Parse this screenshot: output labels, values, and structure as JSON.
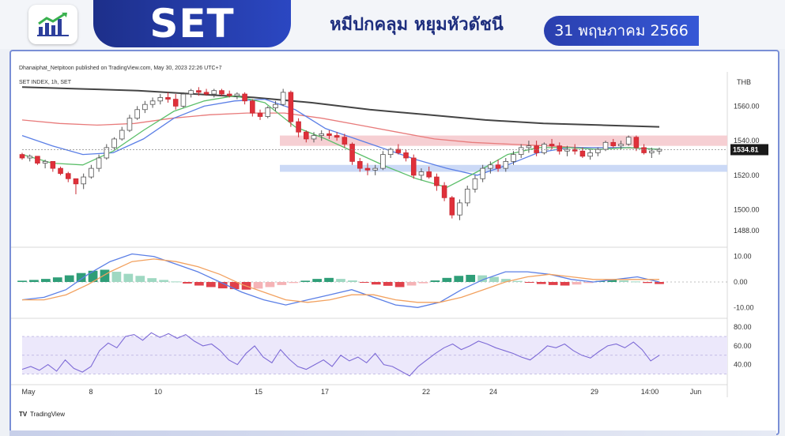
{
  "header": {
    "ticker": "SET",
    "subtitle": "หมีปกคลุม หยุมหัวดัชนี",
    "date": "31 พฤษภาคม 2566",
    "logo_icon": "chart-growth-icon"
  },
  "chart_meta": {
    "published": "Dhanaiphat_Netpitoon published on TradingView.com, May 30, 2023 22:26 UTC+7",
    "symbol": "SET INDEX, 1h, SET",
    "currency": "THB",
    "last_price_label": "1534.81",
    "brand": "TradingView"
  },
  "chart_data": [
    {
      "type": "candlestick",
      "symbol": "SET INDEX",
      "interval": "1h",
      "price_axis_ticks": [
        "1560.00",
        "1540.00",
        "1520.00",
        "1500.00",
        "1488.00"
      ],
      "ylim": [
        1482,
        1578
      ],
      "last_price": 1534.81,
      "x_ticks": [
        "May",
        "8",
        "10",
        "15",
        "17",
        "22",
        "24",
        "29",
        "14:00",
        "Jun"
      ],
      "candles": [
        [
          1532,
          1533,
          1529,
          1530
        ],
        [
          1530,
          1532,
          1528,
          1531
        ],
        [
          1531,
          1531,
          1526,
          1527
        ],
        [
          1527,
          1529,
          1524,
          1528
        ],
        [
          1528,
          1528,
          1522,
          1524
        ],
        [
          1524,
          1525,
          1520,
          1521
        ],
        [
          1521,
          1522,
          1516,
          1518
        ],
        [
          1518,
          1518,
          1509,
          1515
        ],
        [
          1515,
          1521,
          1512,
          1519
        ],
        [
          1519,
          1526,
          1518,
          1524
        ],
        [
          1524,
          1532,
          1522,
          1530
        ],
        [
          1530,
          1538,
          1529,
          1536
        ],
        [
          1536,
          1542,
          1535,
          1541
        ],
        [
          1541,
          1548,
          1540,
          1546
        ],
        [
          1546,
          1555,
          1545,
          1553
        ],
        [
          1553,
          1560,
          1552,
          1558
        ],
        [
          1558,
          1563,
          1556,
          1561
        ],
        [
          1561,
          1565,
          1559,
          1563
        ],
        [
          1563,
          1567,
          1561,
          1565
        ],
        [
          1565,
          1568,
          1562,
          1564
        ],
        [
          1564,
          1567,
          1558,
          1560
        ],
        [
          1560,
          1568,
          1559,
          1567
        ],
        [
          1567,
          1570,
          1565,
          1569
        ],
        [
          1569,
          1571,
          1566,
          1568
        ],
        [
          1568,
          1570,
          1566,
          1567
        ],
        [
          1567,
          1570,
          1565,
          1569
        ],
        [
          1569,
          1570,
          1566,
          1567
        ],
        [
          1567,
          1569,
          1565,
          1566
        ],
        [
          1566,
          1568,
          1564,
          1567
        ],
        [
          1567,
          1568,
          1561,
          1563
        ],
        [
          1563,
          1564,
          1554,
          1556
        ],
        [
          1556,
          1558,
          1552,
          1554
        ],
        [
          1554,
          1560,
          1553,
          1559
        ],
        [
          1559,
          1563,
          1557,
          1561
        ],
        [
          1561,
          1570,
          1560,
          1568
        ],
        [
          1568,
          1569,
          1548,
          1551
        ],
        [
          1551,
          1553,
          1542,
          1545
        ],
        [
          1545,
          1546,
          1539,
          1541
        ],
        [
          1541,
          1545,
          1539,
          1543
        ],
        [
          1543,
          1546,
          1540,
          1544
        ],
        [
          1544,
          1546,
          1541,
          1543
        ],
        [
          1543,
          1545,
          1540,
          1542
        ],
        [
          1542,
          1544,
          1536,
          1538
        ],
        [
          1538,
          1539,
          1526,
          1528
        ],
        [
          1528,
          1530,
          1522,
          1524
        ],
        [
          1524,
          1527,
          1520,
          1523
        ],
        [
          1523,
          1526,
          1520,
          1524
        ],
        [
          1524,
          1534,
          1523,
          1532
        ],
        [
          1532,
          1536,
          1530,
          1535
        ],
        [
          1535,
          1538,
          1532,
          1533
        ],
        [
          1533,
          1535,
          1528,
          1530
        ],
        [
          1530,
          1532,
          1518,
          1520
        ],
        [
          1520,
          1524,
          1517,
          1522
        ],
        [
          1522,
          1525,
          1518,
          1519
        ],
        [
          1519,
          1521,
          1511,
          1514
        ],
        [
          1514,
          1516,
          1505,
          1507
        ],
        [
          1507,
          1508,
          1495,
          1497
        ],
        [
          1497,
          1506,
          1494,
          1504
        ],
        [
          1504,
          1514,
          1502,
          1512
        ],
        [
          1512,
          1520,
          1510,
          1518
        ],
        [
          1518,
          1526,
          1516,
          1524
        ],
        [
          1524,
          1528,
          1521,
          1526
        ],
        [
          1526,
          1529,
          1522,
          1524
        ],
        [
          1524,
          1530,
          1522,
          1528
        ],
        [
          1528,
          1534,
          1526,
          1532
        ],
        [
          1532,
          1538,
          1530,
          1536
        ],
        [
          1536,
          1540,
          1533,
          1537
        ],
        [
          1537,
          1540,
          1531,
          1533
        ],
        [
          1533,
          1539,
          1532,
          1538
        ],
        [
          1538,
          1541,
          1535,
          1537
        ],
        [
          1537,
          1539,
          1532,
          1534
        ],
        [
          1534,
          1537,
          1531,
          1535
        ],
        [
          1535,
          1538,
          1532,
          1534
        ],
        [
          1534,
          1536,
          1530,
          1531
        ],
        [
          1531,
          1535,
          1529,
          1533
        ],
        [
          1533,
          1536,
          1531,
          1535
        ],
        [
          1535,
          1540,
          1534,
          1539
        ],
        [
          1539,
          1541,
          1536,
          1537
        ],
        [
          1537,
          1540,
          1535,
          1538
        ],
        [
          1538,
          1543,
          1537,
          1542
        ],
        [
          1542,
          1543,
          1534,
          1536
        ],
        [
          1536,
          1538,
          1532,
          1533
        ],
        [
          1533,
          1536,
          1530,
          1534
        ],
        [
          1534,
          1536,
          1532,
          1535
        ]
      ],
      "series": [
        {
          "name": "EMA-long",
          "color": "#444444",
          "values": [
            1571,
            1570,
            1569,
            1567,
            1565,
            1562,
            1558,
            1555,
            1552,
            1550,
            1549,
            1548
          ]
        },
        {
          "name": "EMA-mid",
          "color": "#e87b7b",
          "values": [
            1552,
            1550,
            1549,
            1550,
            1553,
            1555,
            1556,
            1556,
            1553,
            1549,
            1545,
            1541,
            1539,
            1538,
            1537,
            1536,
            1536,
            1535
          ]
        },
        {
          "name": "EMA-fast-blue",
          "color": "#5b7fe6",
          "values": [
            1543,
            1537,
            1532,
            1533,
            1541,
            1553,
            1560,
            1563,
            1564,
            1558,
            1547,
            1541,
            1535,
            1529,
            1524,
            1520,
            1526,
            1533,
            1536,
            1536,
            1536,
            1535
          ]
        },
        {
          "name": "EMA-fast-green",
          "color": "#5cbf6a",
          "values": [
            1532,
            1527,
            1526,
            1534,
            1546,
            1557,
            1563,
            1566,
            1562,
            1548,
            1541,
            1533,
            1525,
            1518,
            1513,
            1522,
            1532,
            1536,
            1536,
            1535,
            1536,
            1535
          ]
        }
      ],
      "zones": [
        {
          "label": "resistance",
          "from": 1537,
          "to": 1543,
          "color": "#f6cfd3"
        },
        {
          "label": "support",
          "from": 1522,
          "to": 1526,
          "color": "#cbd9f6"
        }
      ]
    },
    {
      "type": "macd",
      "axis_ticks": [
        "10.00",
        "0.00",
        "-10.00"
      ],
      "ylim": [
        -13,
        13
      ],
      "histogram": [
        0.5,
        0.8,
        1.2,
        1.8,
        2.6,
        3.5,
        4.4,
        4.8,
        4.0,
        3.2,
        2.4,
        1.5,
        0.8,
        0.2,
        -0.6,
        -1.4,
        -2.0,
        -2.5,
        -2.8,
        -3.0,
        -2.6,
        -2.0,
        -1.2,
        -0.4,
        0.5,
        1.2,
        1.6,
        1.2,
        0.6,
        -0.3,
        -1.0,
        -1.5,
        -2.0,
        -1.4,
        -0.5,
        0.6,
        1.6,
        2.4,
        2.8,
        2.6,
        2.0,
        1.2,
        0.4,
        -0.3,
        -0.8,
        -1.2,
        -1.4,
        -1.0,
        -0.4,
        0.4,
        0.8,
        0.6,
        0.2,
        -0.4,
        -0.8
      ],
      "series": [
        {
          "name": "MACD",
          "color": "#5b7fe6",
          "values": [
            -7,
            -6,
            -3,
            3,
            8,
            11,
            10,
            7,
            4,
            0,
            -4,
            -7,
            -9,
            -7,
            -5,
            -3,
            -6,
            -9,
            -10,
            -8,
            -3,
            1,
            4,
            4,
            3,
            1,
            0,
            1,
            2,
            0
          ]
        },
        {
          "name": "Signal",
          "color": "#f2a15f",
          "values": [
            -7,
            -7,
            -5,
            -1,
            4,
            8,
            9,
            8,
            6,
            3,
            -1,
            -4,
            -7,
            -8,
            -7,
            -5,
            -5,
            -7,
            -8,
            -8,
            -6,
            -3,
            0,
            2,
            3,
            2,
            1,
            1,
            1,
            1
          ]
        }
      ]
    },
    {
      "type": "rsi",
      "axis_ticks": [
        "80.00",
        "60.00",
        "40.00"
      ],
      "ylim": [
        22,
        86
      ],
      "band": [
        30,
        70
      ],
      "color": "#7d6ad6",
      "values": [
        35,
        38,
        34,
        40,
        33,
        45,
        36,
        32,
        38,
        55,
        63,
        58,
        70,
        72,
        66,
        74,
        69,
        73,
        68,
        72,
        65,
        60,
        62,
        55,
        45,
        40,
        52,
        60,
        48,
        42,
        56,
        46,
        38,
        35,
        40,
        45,
        38,
        50,
        44,
        48,
        42,
        52,
        40,
        38,
        33,
        28,
        38,
        45,
        52,
        58,
        62,
        56,
        60,
        65,
        62,
        58,
        55,
        52,
        48,
        45,
        52,
        60,
        58,
        62,
        55,
        50,
        47,
        54,
        60,
        62,
        58,
        64,
        56,
        44,
        50
      ]
    }
  ]
}
